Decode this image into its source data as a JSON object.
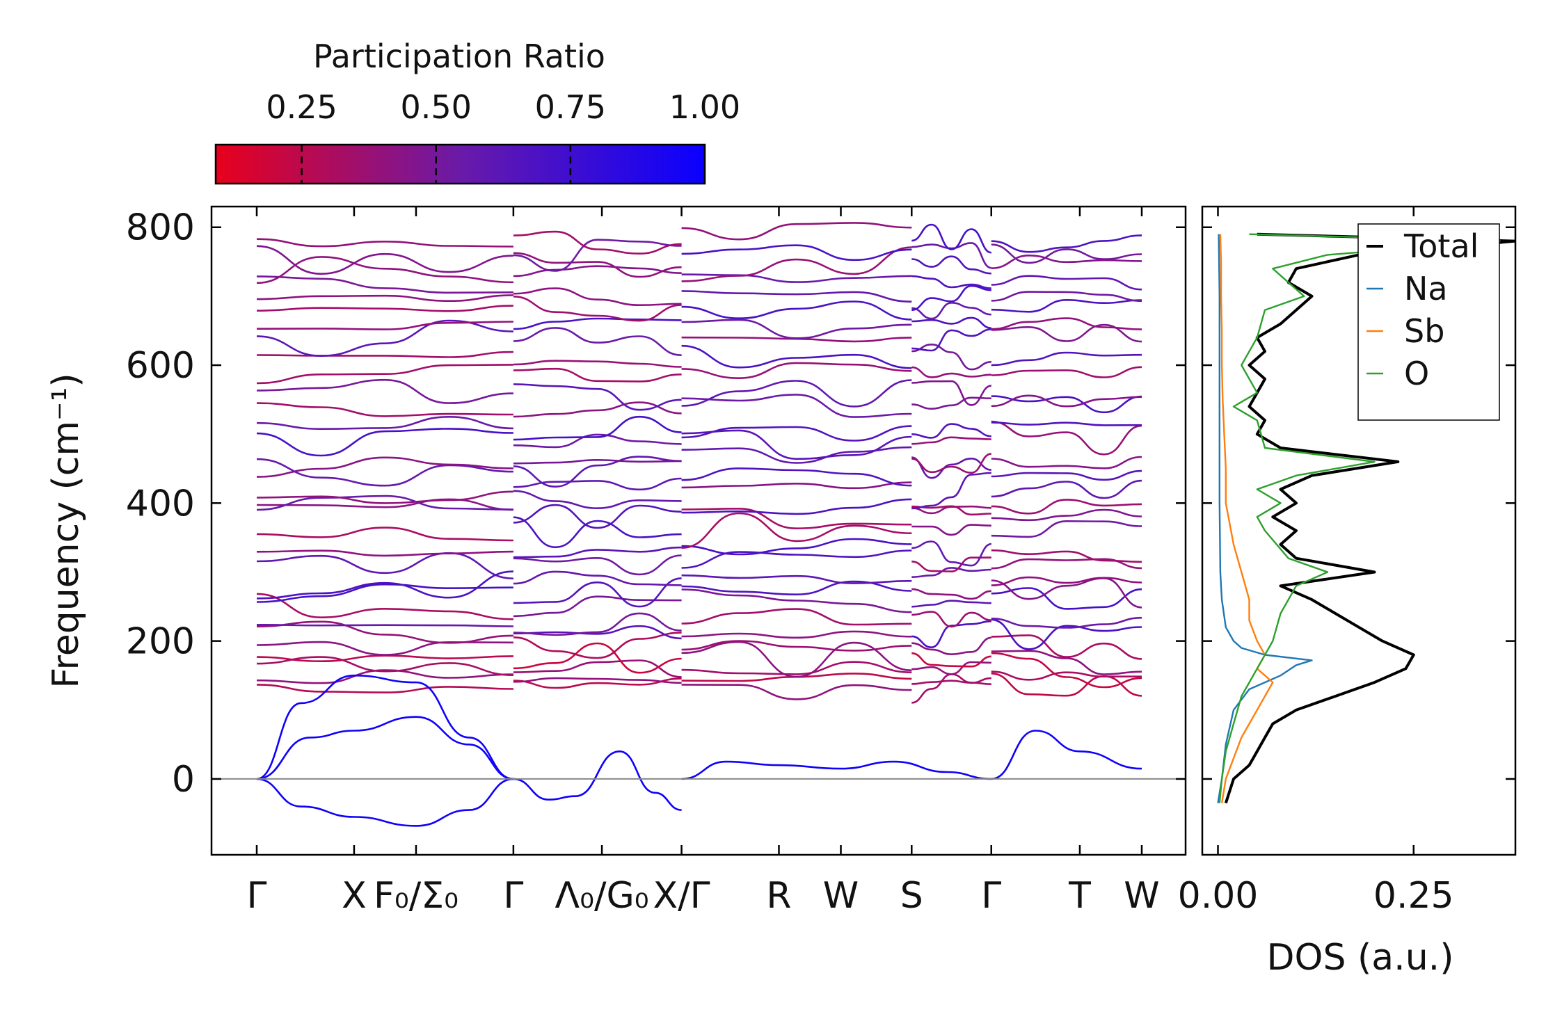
{
  "chart_data": [
    {
      "type": "line",
      "subtype": "phonon-band-structure",
      "ylabel": "Frequency (cm⁻¹)",
      "ylim": [
        -110,
        830
      ],
      "yticks": [
        0,
        200,
        400,
        600,
        800
      ],
      "ytick_labels": [
        "0",
        "200",
        "400",
        "600",
        "800"
      ],
      "kpath": [
        {
          "pos": 0.0,
          "label": "Γ"
        },
        {
          "pos": 0.11,
          "label": "X"
        },
        {
          "pos": 0.18,
          "label": "F₀/Σ₀"
        },
        {
          "pos": 0.29,
          "label": "Γ"
        },
        {
          "pos": 0.39,
          "label": "Λ₀/G₀"
        },
        {
          "pos": 0.48,
          "label": "X/Γ"
        },
        {
          "pos": 0.59,
          "label": "R"
        },
        {
          "pos": 0.66,
          "label": "W"
        },
        {
          "pos": 0.74,
          "label": "S"
        },
        {
          "pos": 0.83,
          "label": "Γ"
        },
        {
          "pos": 0.93,
          "label": "T"
        },
        {
          "pos": 1.0,
          "label": "W"
        }
      ],
      "path_breaks": [
        0.29,
        0.48,
        0.74,
        0.83
      ],
      "zero_line": 0,
      "acoustic_branches": [
        {
          "name": "acoustic-1",
          "x": [
            0.0,
            0.05,
            0.11,
            0.18,
            0.24,
            0.29
          ],
          "y": [
            0,
            -40,
            -55,
            -68,
            -45,
            0
          ]
        },
        {
          "name": "acoustic-2",
          "x": [
            0.0,
            0.06,
            0.11,
            0.18,
            0.24,
            0.29
          ],
          "y": [
            0,
            60,
            70,
            90,
            50,
            0
          ]
        },
        {
          "name": "acoustic-3",
          "x": [
            0.0,
            0.05,
            0.11,
            0.18,
            0.24,
            0.29
          ],
          "y": [
            0,
            110,
            150,
            140,
            60,
            0
          ]
        },
        {
          "name": "acoustic-4",
          "x": [
            0.29,
            0.33,
            0.36,
            0.41,
            0.45,
            0.48
          ],
          "y": [
            0,
            -30,
            -25,
            40,
            -20,
            -45
          ]
        },
        {
          "name": "acoustic-5",
          "x": [
            0.48,
            0.53,
            0.59,
            0.66,
            0.72,
            0.78,
            0.83
          ],
          "y": [
            0,
            25,
            20,
            15,
            25,
            10,
            0
          ]
        },
        {
          "name": "acoustic-6",
          "x": [
            0.83,
            0.88,
            0.93,
            1.0
          ],
          "y": [
            0,
            70,
            40,
            15
          ]
        }
      ],
      "optical_band_frequencies": [
        130,
        145,
        160,
        175,
        190,
        210,
        230,
        250,
        270,
        290,
        310,
        330,
        360,
        380,
        400,
        420,
        445,
        460,
        490,
        510,
        540,
        560,
        590,
        610,
        640,
        660,
        680,
        700,
        720,
        745,
        760,
        780
      ],
      "color_scale": {
        "label": "Participation Ratio",
        "ticks": [
          "0.25",
          "0.50",
          "0.75",
          "1.00"
        ],
        "tick_values": [
          0.25,
          0.5,
          0.75,
          1.0
        ],
        "range": [
          0.09,
          1.0
        ],
        "low_color": "#e8001c",
        "mid_color": "#6a1aa8",
        "high_color": "#0a00ff"
      }
    },
    {
      "type": "line",
      "subtype": "density-of-states",
      "xlabel": "DOS (a.u.)",
      "xticks": [
        0.0,
        0.25
      ],
      "xtick_labels": [
        "0.00",
        "0.25"
      ],
      "xlim": [
        -0.02,
        0.38
      ],
      "ylim": [
        -110,
        830
      ],
      "legend": {
        "placement": "top-right",
        "entries": [
          "Total",
          "Na",
          "Sb",
          "O"
        ]
      },
      "series": [
        {
          "name": "Total",
          "color": "#000000",
          "freq": [
            -35,
            0,
            20,
            40,
            60,
            80,
            100,
            120,
            140,
            160,
            180,
            200,
            220,
            240,
            260,
            280,
            300,
            320,
            340,
            360,
            380,
            400,
            420,
            440,
            460,
            480,
            500,
            520,
            540,
            560,
            580,
            600,
            620,
            640,
            660,
            680,
            700,
            720,
            740,
            760,
            780,
            790
          ],
          "dos": [
            0.01,
            0.02,
            0.04,
            0.05,
            0.06,
            0.07,
            0.1,
            0.15,
            0.2,
            0.24,
            0.25,
            0.21,
            0.18,
            0.15,
            0.12,
            0.08,
            0.2,
            0.1,
            0.08,
            0.1,
            0.07,
            0.1,
            0.08,
            0.12,
            0.23,
            0.08,
            0.05,
            0.06,
            0.04,
            0.05,
            0.06,
            0.04,
            0.06,
            0.05,
            0.08,
            0.1,
            0.12,
            0.09,
            0.1,
            0.18,
            0.38,
            0.05
          ]
        },
        {
          "name": "Na",
          "color": "#1f77b4",
          "freq": [
            -35,
            0,
            50,
            100,
            130,
            150,
            165,
            172,
            180,
            190,
            200,
            220,
            260,
            300,
            400,
            500,
            600,
            700,
            790
          ],
          "dos": [
            0.0,
            0.005,
            0.01,
            0.02,
            0.04,
            0.08,
            0.1,
            0.12,
            0.06,
            0.03,
            0.02,
            0.01,
            0.005,
            0.003,
            0.002,
            0.002,
            0.002,
            0.002,
            0.001
          ]
        },
        {
          "name": "Sb",
          "color": "#ff7f0e",
          "freq": [
            -35,
            0,
            30,
            60,
            80,
            100,
            120,
            140,
            160,
            180,
            200,
            230,
            260,
            300,
            340,
            400,
            450,
            500,
            550,
            600,
            650,
            700,
            750,
            790
          ],
          "dos": [
            0.005,
            0.01,
            0.02,
            0.03,
            0.04,
            0.05,
            0.06,
            0.07,
            0.05,
            0.06,
            0.05,
            0.04,
            0.04,
            0.03,
            0.02,
            0.01,
            0.01,
            0.008,
            0.006,
            0.005,
            0.005,
            0.004,
            0.004,
            0.003
          ]
        },
        {
          "name": "O",
          "color": "#2ca02c",
          "freq": [
            -35,
            0,
            40,
            80,
            120,
            160,
            200,
            240,
            280,
            300,
            320,
            360,
            380,
            400,
            420,
            440,
            460,
            480,
            520,
            540,
            560,
            600,
            620,
            640,
            680,
            700,
            720,
            740,
            760,
            780,
            790
          ],
          "dos": [
            0.002,
            0.005,
            0.01,
            0.02,
            0.03,
            0.05,
            0.07,
            0.08,
            0.1,
            0.14,
            0.09,
            0.06,
            0.05,
            0.08,
            0.05,
            0.1,
            0.2,
            0.06,
            0.05,
            0.02,
            0.05,
            0.03,
            0.04,
            0.05,
            0.06,
            0.11,
            0.09,
            0.07,
            0.14,
            0.36,
            0.04
          ]
        }
      ]
    }
  ]
}
